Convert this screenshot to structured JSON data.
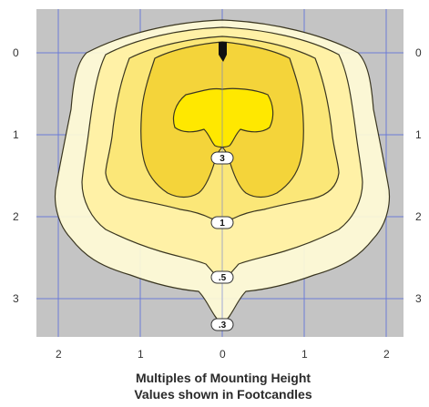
{
  "colors": {
    "background": "#c4c4c4",
    "grid": "#6b7bd6",
    "outline": "#3a3620",
    "zone_03": "#fffbd6",
    "zone_05": "#fff1a6",
    "zone_1": "#fbe778",
    "zone_3": "#f4d43a",
    "hot_zone": "#ffe800",
    "fixture": "#111111"
  },
  "y_axis_left": [
    "0",
    "1",
    "2",
    "3"
  ],
  "y_axis_right": [
    "0",
    "1",
    "2",
    "3"
  ],
  "x_axis": [
    "2",
    "1",
    "0",
    "1",
    "2"
  ],
  "contour_labels": [
    ".3",
    ".5",
    "1",
    "3"
  ],
  "caption": {
    "line1": "Multiples of Mounting Height",
    "line2": "Values shown in Footcandles"
  }
}
